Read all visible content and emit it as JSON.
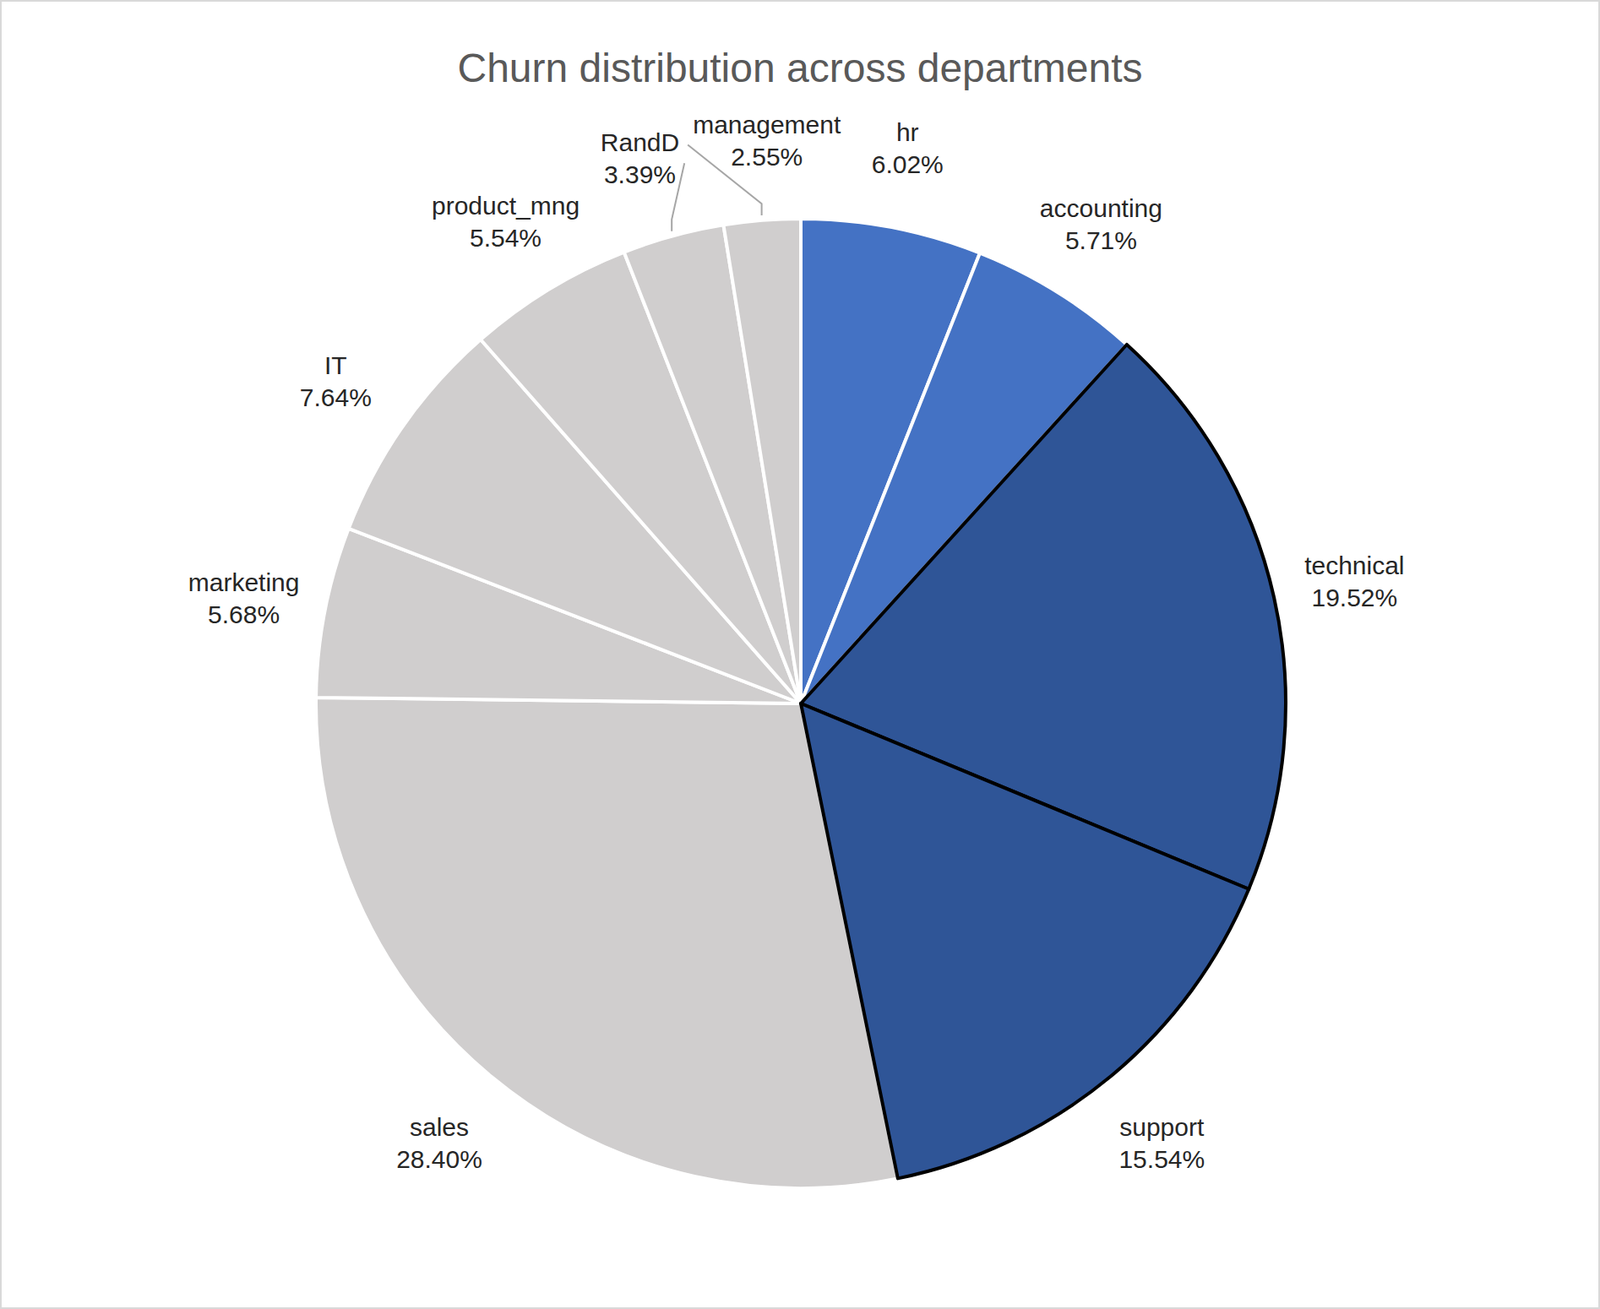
{
  "chart_data": {
    "type": "pie",
    "title": "Churn distribution across departments",
    "categories": [
      "hr",
      "accounting",
      "technical",
      "support",
      "sales",
      "marketing",
      "IT",
      "product_mng",
      "RandD",
      "management"
    ],
    "values": [
      6.02,
      5.71,
      19.52,
      15.54,
      28.4,
      5.68,
      7.64,
      5.54,
      3.39,
      2.55
    ],
    "value_labels": [
      "6.02%",
      "5.71%",
      "19.52%",
      "15.54%",
      "28.40%",
      "5.68%",
      "7.64%",
      "5.54%",
      "3.39%",
      "2.55%"
    ],
    "colors": [
      "#4472c4",
      "#4472c4",
      "#2f5597",
      "#2f5597",
      "#d0cece",
      "#d0cece",
      "#d0cece",
      "#d0cece",
      "#d0cece",
      "#d0cece"
    ],
    "data_labels": true
  }
}
